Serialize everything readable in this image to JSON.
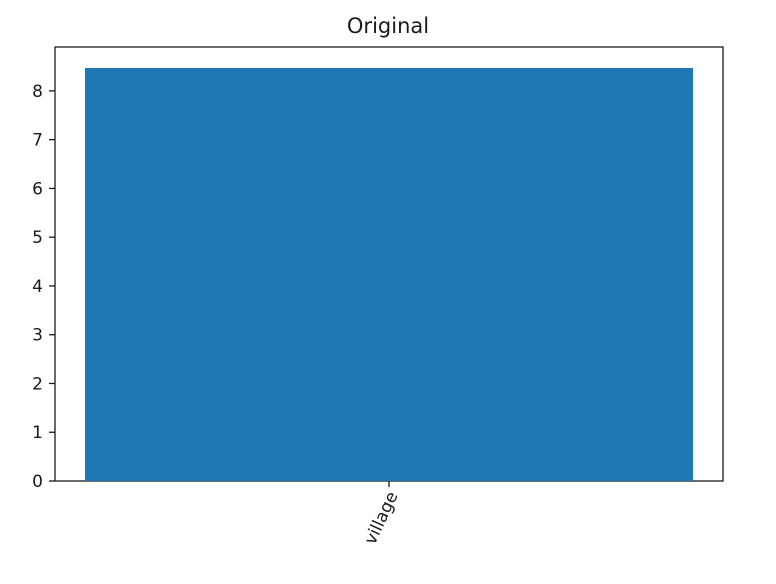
{
  "chart_data": {
    "type": "bar",
    "title": "Original",
    "xlabel": "",
    "ylabel": "",
    "categories": [
      "village"
    ],
    "values": [
      8.47
    ],
    "ylim": [
      0,
      8.9
    ],
    "yticks": [
      0,
      1,
      2,
      3,
      4,
      5,
      6,
      7,
      8
    ],
    "bar_color": "#1f77b4",
    "grid": false,
    "xtick_rotation_deg": -65
  }
}
